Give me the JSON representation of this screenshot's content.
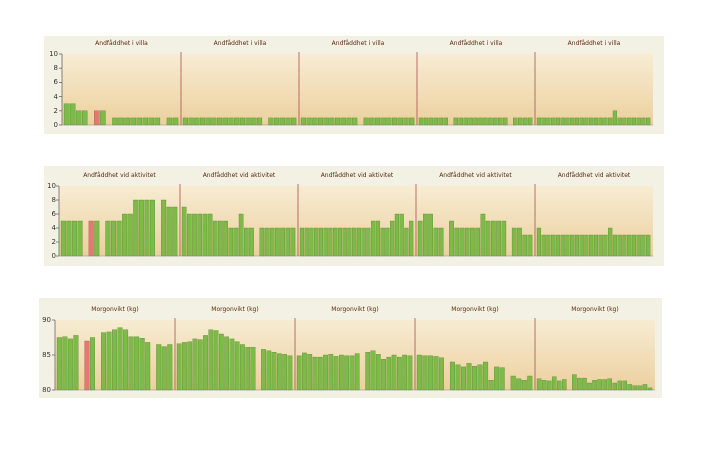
{
  "colors": {
    "bar": "#7fb94a",
    "bar_edge": "#4e8a24",
    "highlight": "#e07a73",
    "plot_top": "#f7ecd3",
    "plot_bottom": "#ecd09e",
    "strip": "#f3f1e4",
    "title": "#5a2a12",
    "divider": "#a85050"
  },
  "chart_data": [
    {
      "type": "bar",
      "ylim": [
        0,
        10
      ],
      "yticks": [
        "0",
        "2",
        "4",
        "6",
        "8",
        "10"
      ],
      "grid": false,
      "panels": [
        {
          "title": "Andfåddhet i villa",
          "values": [
            3,
            3,
            2,
            2,
            null,
            2,
            2,
            null,
            1,
            1,
            1,
            1,
            1,
            1,
            1,
            1,
            null,
            1,
            1
          ],
          "highlight_index": 5
        },
        {
          "title": "Andfåddhet i villa",
          "values": [
            1,
            1,
            1,
            1,
            1,
            1,
            1,
            1,
            1,
            1,
            1,
            1,
            1,
            1,
            null,
            1,
            1,
            1,
            1,
            1
          ],
          "highlight_index": -1
        },
        {
          "title": "Andfåddhet i villa",
          "values": [
            1,
            1,
            1,
            1,
            1,
            1,
            1,
            1,
            1,
            1,
            null,
            1,
            1,
            1,
            1,
            1,
            1,
            1,
            1,
            1
          ],
          "highlight_index": -1
        },
        {
          "title": "Andfåddhet i villa",
          "values": [
            1,
            1,
            1,
            1,
            1,
            1,
            null,
            1,
            1,
            1,
            1,
            1,
            1,
            1,
            1,
            1,
            1,
            1,
            null,
            1,
            1,
            1,
            1
          ],
          "highlight_index": -1
        },
        {
          "title": "Andfåddhet i villa",
          "values": [
            1,
            1,
            1,
            1,
            1,
            1,
            1,
            1,
            1,
            1,
            1,
            1,
            1,
            1,
            1,
            1,
            2,
            1,
            1,
            1,
            1,
            1,
            1,
            1
          ],
          "highlight_index": -1
        }
      ]
    },
    {
      "type": "bar",
      "ylim": [
        0,
        10
      ],
      "yticks": [
        "0",
        "2",
        "4",
        "6",
        "8",
        "10"
      ],
      "grid": false,
      "panels": [
        {
          "title": "Andfåddhet vid aktivitet",
          "values": [
            5,
            5,
            5,
            5,
            null,
            5,
            5,
            null,
            5,
            5,
            5,
            6,
            6,
            8,
            8,
            8,
            8,
            null,
            8,
            7,
            7
          ],
          "highlight_index": 5
        },
        {
          "title": "Andfåddhet vid aktivitet",
          "values": [
            7,
            6,
            6,
            6,
            6,
            6,
            5,
            5,
            5,
            4,
            4,
            6,
            4,
            4,
            null,
            4,
            4,
            4,
            4,
            4,
            4,
            4
          ],
          "highlight_index": -1
        },
        {
          "title": "Andfåddhet vid aktivitet",
          "values": [
            4,
            4,
            4,
            4,
            4,
            4,
            4,
            4,
            4,
            4,
            4,
            4,
            4,
            4,
            4,
            5,
            5,
            4,
            4,
            5,
            6,
            6,
            4,
            5
          ],
          "highlight_index": -1
        },
        {
          "title": "Andfåddhet vid aktivitet",
          "values": [
            5,
            6,
            6,
            4,
            4,
            null,
            5,
            4,
            4,
            4,
            4,
            4,
            6,
            5,
            5,
            5,
            5,
            null,
            4,
            4,
            3,
            3
          ],
          "highlight_index": -1
        },
        {
          "title": "Andfåddhet vid aktivitet",
          "values": [
            4,
            3,
            3,
            3,
            3,
            3,
            3,
            3,
            3,
            3,
            3,
            3,
            3,
            3,
            3,
            4,
            3,
            3,
            3,
            3,
            3,
            3,
            3,
            3
          ],
          "highlight_index": -1
        }
      ]
    },
    {
      "type": "bar",
      "ylim": [
        80,
        90
      ],
      "yticks": [
        "80",
        "85",
        "90"
      ],
      "ytick_values": [
        80,
        85,
        90
      ],
      "grid": false,
      "panels": [
        {
          "title": "Morgonvikt (kg)",
          "values": [
            87.5,
            87.6,
            87.3,
            87.8,
            null,
            87.0,
            87.5,
            null,
            88.2,
            88.3,
            88.6,
            88.9,
            88.6,
            87.6,
            87.6,
            87.4,
            86.8,
            null,
            86.5,
            86.2,
            86.5
          ],
          "highlight_index": 5
        },
        {
          "title": "Morgonvikt (kg)",
          "values": [
            86.6,
            86.8,
            86.9,
            87.3,
            87.2,
            87.8,
            88.6,
            88.5,
            88.0,
            87.6,
            87.3,
            86.9,
            86.5,
            86.1,
            86.1,
            null,
            85.8,
            85.6,
            85.4,
            85.2,
            85.1,
            84.9
          ],
          "highlight_index": -1
        },
        {
          "title": "Morgonvikt (kg)",
          "values": [
            84.9,
            85.3,
            85.1,
            84.7,
            84.7,
            85.0,
            85.1,
            84.8,
            85.0,
            84.9,
            84.9,
            85.2,
            null,
            85.4,
            85.6,
            85.1,
            84.4,
            84.7,
            85.0,
            84.7,
            85.0,
            84.9
          ],
          "highlight_index": -1
        },
        {
          "title": "Morgonvikt (kg)",
          "values": [
            85.0,
            84.9,
            84.9,
            84.8,
            84.6,
            null,
            84.0,
            83.6,
            83.3,
            83.8,
            83.4,
            83.6,
            84.0,
            81.4,
            83.3,
            83.2,
            null,
            82.0,
            81.6,
            81.4,
            82.0
          ],
          "highlight_index": -1
        },
        {
          "title": "Morgonvikt (kg)",
          "values": [
            81.6,
            81.4,
            81.3,
            81.9,
            81.3,
            81.5,
            null,
            82.2,
            81.7,
            81.7,
            81.0,
            81.4,
            81.5,
            81.5,
            81.6,
            81.0,
            81.3,
            81.3,
            80.8,
            80.6,
            80.6,
            80.8,
            80.3
          ],
          "highlight_index": -1
        }
      ]
    }
  ]
}
